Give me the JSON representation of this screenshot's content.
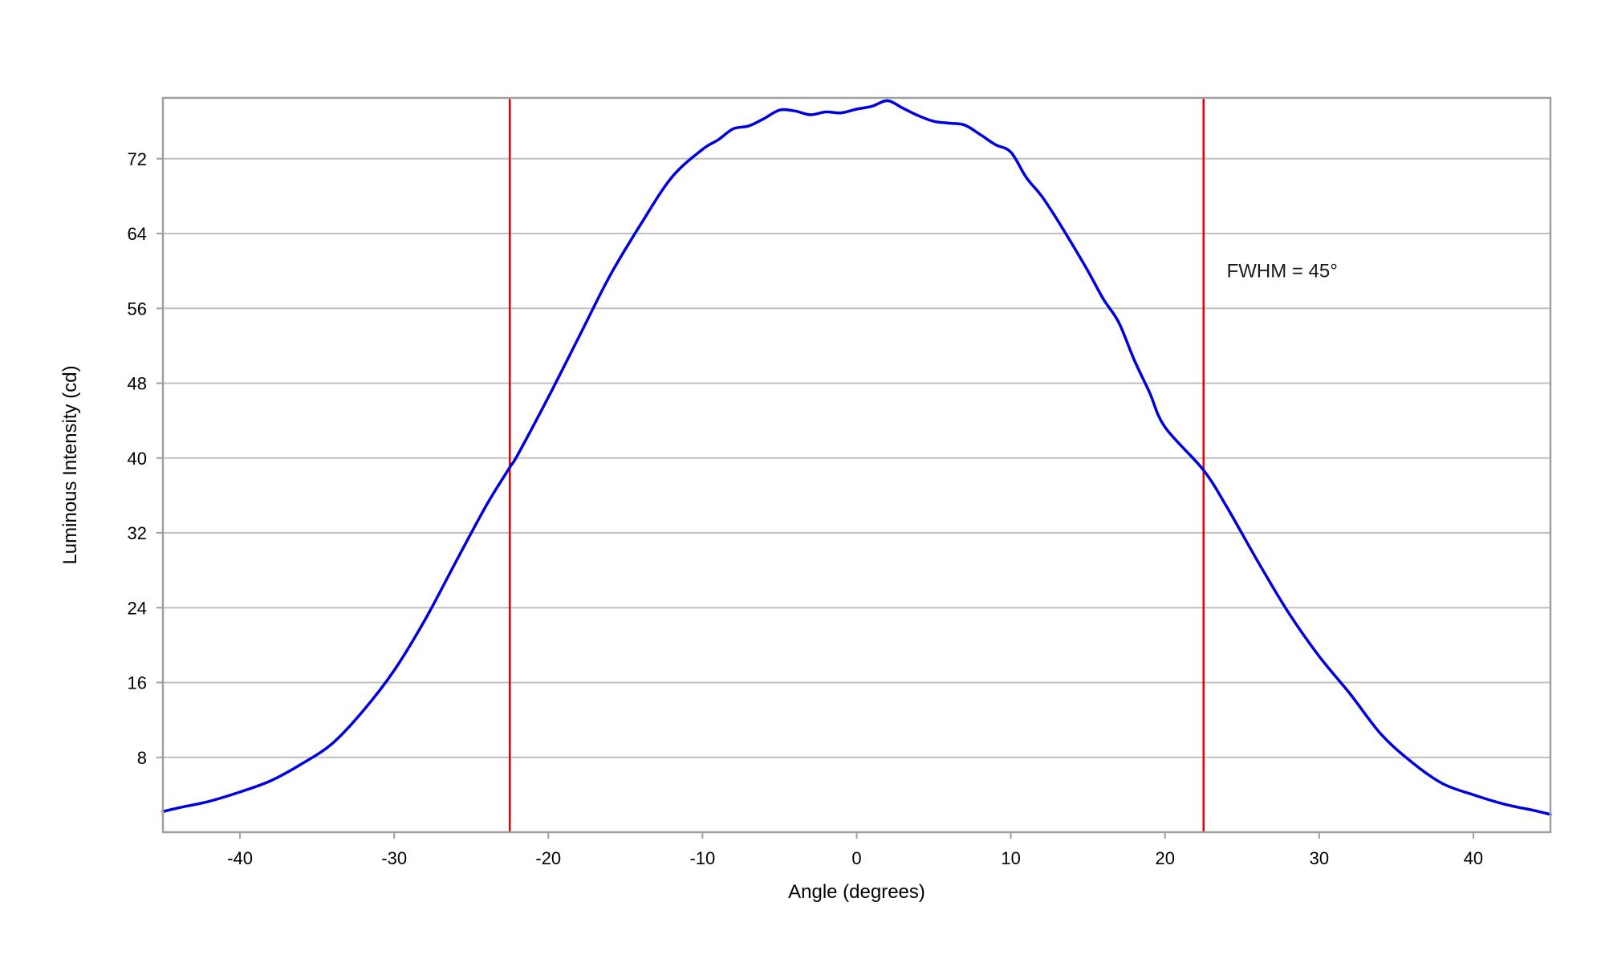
{
  "chart_data": {
    "type": "line",
    "title": "",
    "xlabel": "Angle (degrees)",
    "ylabel": "Luminous Intensity (cd)",
    "xlim": [
      -45,
      45
    ],
    "ylim": [
      0,
      78.5
    ],
    "x_ticks": [
      -40,
      -30,
      -20,
      -10,
      0,
      10,
      20,
      30,
      40
    ],
    "x_tick_labels": [
      "-40",
      "-30",
      "-20",
      "-10",
      "0",
      "10",
      "20",
      "30",
      "40"
    ],
    "y_ticks": [
      8,
      16,
      24,
      32,
      40,
      48,
      56,
      64,
      72
    ],
    "y_tick_labels": [
      "8",
      "16",
      "24",
      "32",
      "40",
      "48",
      "56",
      "64",
      "72"
    ],
    "grid": "horizontal",
    "legend": "none",
    "series": [
      {
        "color": "#0000dd",
        "x": [
          -45,
          -44,
          -42,
          -40,
          -38,
          -36,
          -34,
          -32,
          -30,
          -28,
          -26,
          -24,
          -22.5,
          -22,
          -20,
          -18,
          -16,
          -14,
          -12,
          -10,
          -9,
          -8,
          -7,
          -6,
          -5,
          -4,
          -3,
          -2,
          -1,
          0,
          1,
          2,
          3,
          4,
          5,
          6,
          7,
          8,
          9,
          10,
          11,
          12,
          13,
          14,
          15,
          16,
          17,
          18,
          19,
          20,
          22.5,
          24,
          26,
          28,
          30,
          32,
          34,
          36,
          38,
          40,
          42,
          44,
          45
        ],
        "y": [
          2.2,
          2.6,
          3.3,
          4.3,
          5.5,
          7.3,
          9.5,
          13.0,
          17.3,
          22.7,
          28.9,
          35.0,
          39.0,
          40.3,
          46.5,
          53.0,
          59.5,
          65.0,
          70.0,
          73.0,
          74.0,
          75.2,
          75.5,
          76.3,
          77.2,
          77.1,
          76.7,
          77.0,
          76.9,
          77.3,
          77.6,
          78.2,
          77.4,
          76.6,
          76.0,
          75.8,
          75.6,
          74.6,
          73.5,
          72.7,
          70.0,
          68.0,
          65.5,
          62.8,
          60.0,
          57.0,
          54.5,
          50.5,
          47.0,
          43.3,
          38.7,
          34.8,
          29.0,
          23.5,
          18.8,
          14.8,
          10.5,
          7.5,
          5.2,
          4.0,
          3.0,
          2.3,
          1.9
        ]
      }
    ],
    "vertical_lines": [
      {
        "x": -22.5,
        "color": "#e00000"
      },
      {
        "x": 22.5,
        "color": "#e00000"
      }
    ],
    "annotations": [
      {
        "text": "FWHM = 45°",
        "x": 24,
        "y": 60
      }
    ]
  }
}
